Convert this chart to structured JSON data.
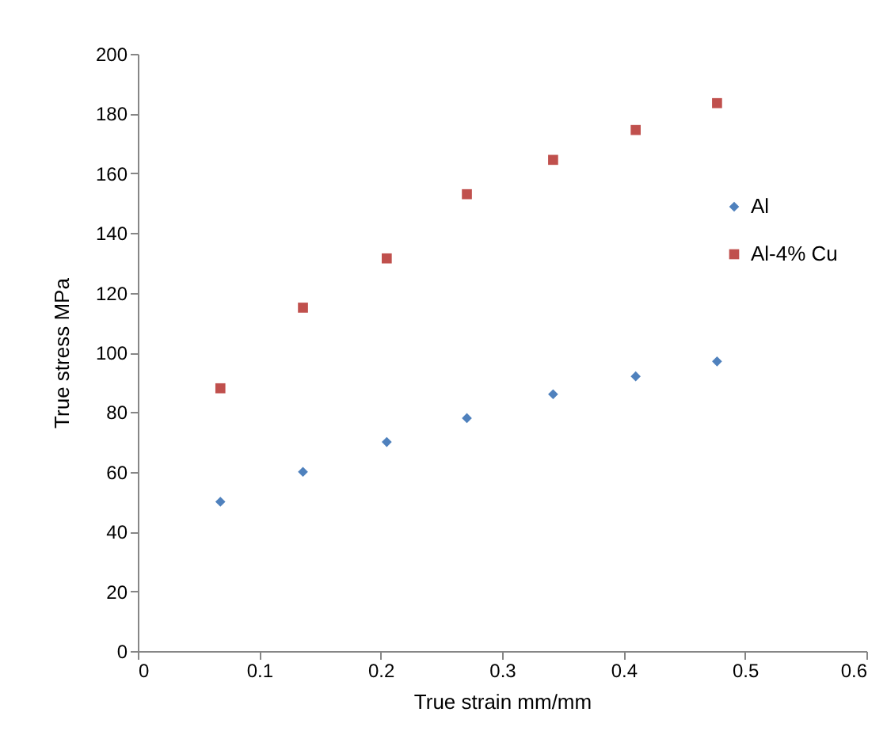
{
  "chart_data": {
    "type": "scatter",
    "xlabel": "True strain  mm/mm",
    "ylabel": "True stress   MPa",
    "xlim": [
      0,
      0.6
    ],
    "xticks": [
      0,
      0.1,
      0.2,
      0.3,
      0.4,
      0.5,
      0.6
    ],
    "ylim": [
      0,
      200
    ],
    "yticks": [
      0,
      20,
      40,
      60,
      80,
      100,
      120,
      140,
      160,
      180,
      200
    ],
    "grid": false,
    "legend": "right",
    "series": [
      {
        "name": "Al",
        "color": "#4f81bd",
        "marker": "diamond",
        "x": [
          0.068,
          0.136,
          0.205,
          0.271,
          0.342,
          0.41,
          0.477
        ],
        "values": [
          50,
          60,
          70,
          78,
          86,
          92,
          97
        ]
      },
      {
        "name": "Al-4% Cu",
        "color": "#c0504d",
        "marker": "square",
        "x": [
          0.068,
          0.136,
          0.205,
          0.271,
          0.342,
          0.41,
          0.477
        ],
        "values": [
          88,
          115,
          131.5,
          153,
          164.5,
          174.5,
          183.5
        ]
      }
    ]
  }
}
